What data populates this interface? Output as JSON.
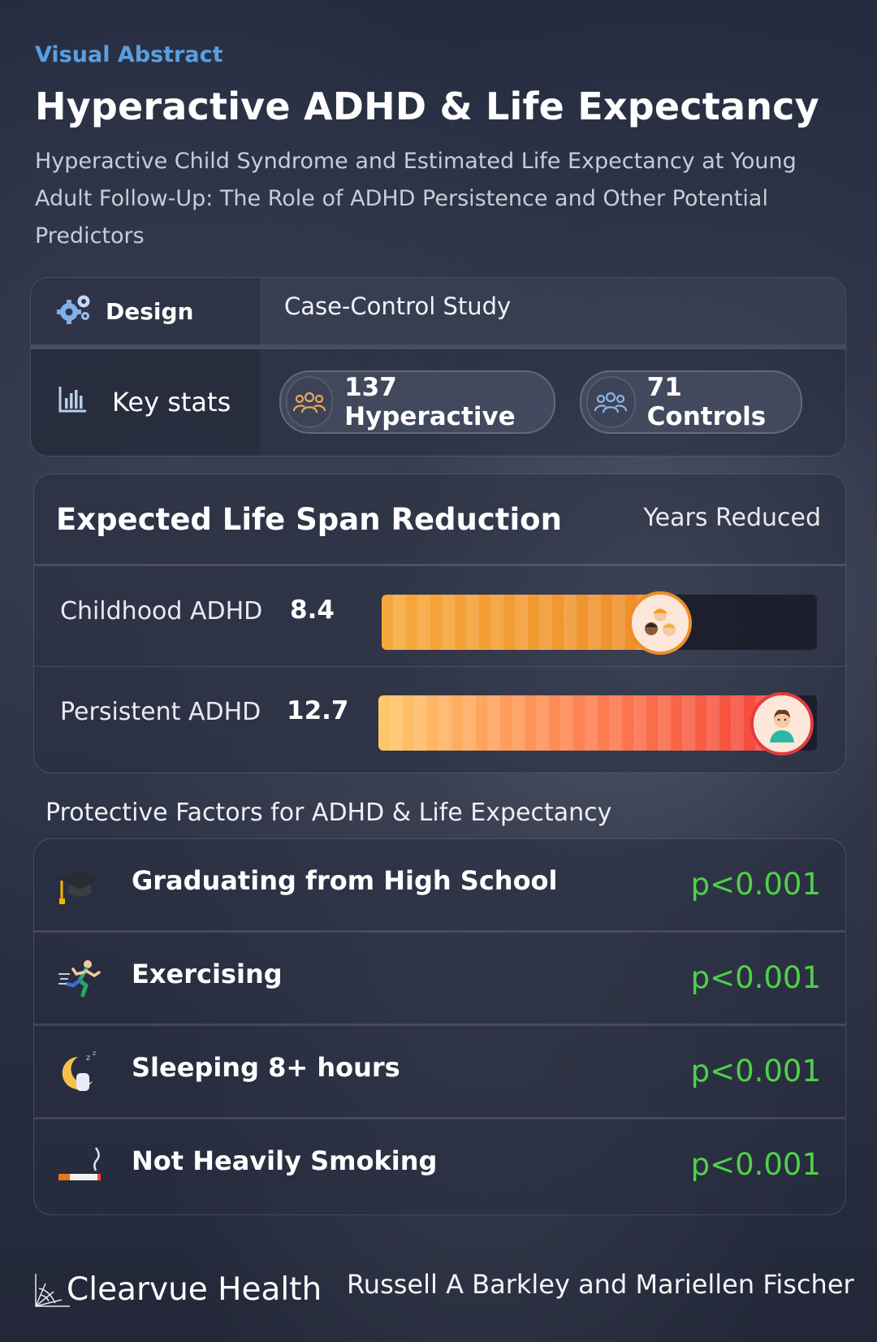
{
  "header": {
    "kicker": "Visual Abstract",
    "title": "Hyperactive ADHD & Life Expectancy",
    "subtitle": "Hyperactive Child Syndrome and Estimated Life Expectancy at Young Adult Follow-Up: The Role of ADHD Persistence and Other Potential Predictors"
  },
  "design": {
    "label": "Design",
    "icon": "gears-icon",
    "value": "Case-Control Study"
  },
  "key_stats": {
    "label": "Key stats",
    "icon": "bar-chart-icon",
    "pills": [
      {
        "text": "137 Hyperactive",
        "icon": "group-icon",
        "icon_color": "#e9a85a"
      },
      {
        "text": "71 Controls",
        "icon": "group-icon",
        "icon_color": "#8fb4e6"
      }
    ]
  },
  "life_span": {
    "title": "Expected Life Span Reduction",
    "unit_label": "Years Reduced",
    "rows": [
      {
        "label": "Childhood ADHD",
        "value": "8.4",
        "fill_fraction": 0.64,
        "color": "#ee8d2a",
        "icon": "children-icon"
      },
      {
        "label": "Persistent ADHD",
        "value": "12.7",
        "fill_fraction": 0.92,
        "color": "#e23c3c",
        "icon": "young-adult-icon"
      }
    ]
  },
  "protective": {
    "title": "Protective Factors for ADHD & Life Expectancy",
    "p_color": "#4fd14a",
    "items": [
      {
        "label": "Graduating from High School",
        "p": "p<0.001",
        "icon": "graduation-cap-icon"
      },
      {
        "label": "Exercising",
        "p": "p<0.001",
        "icon": "running-person-icon"
      },
      {
        "label": "Sleeping 8+ hours",
        "p": "p<0.001",
        "icon": "crescent-moon-sleep-icon"
      },
      {
        "label": "Not Heavily Smoking",
        "p": "p<0.001",
        "icon": "cigarette-icon"
      }
    ]
  },
  "footer": {
    "brand": "Clearvue Health",
    "authors": "Russell A Barkley and Mariellen Fischer"
  }
}
